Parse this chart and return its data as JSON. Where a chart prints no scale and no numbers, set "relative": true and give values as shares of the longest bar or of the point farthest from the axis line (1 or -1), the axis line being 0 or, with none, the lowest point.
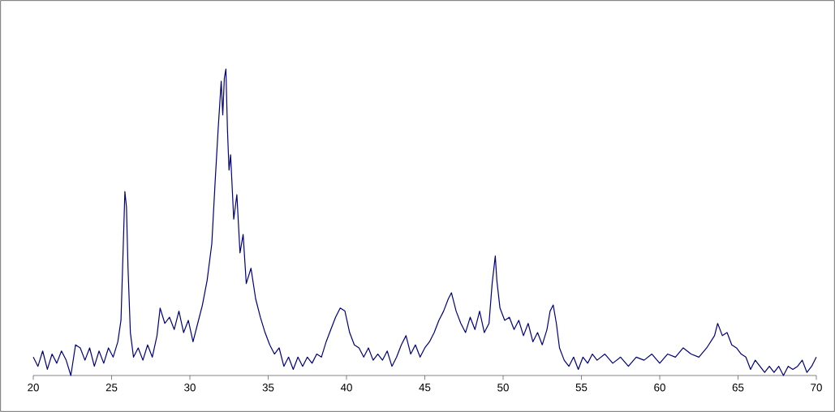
{
  "chart_data": {
    "type": "line",
    "relative": true,
    "xlim": [
      20,
      70
    ],
    "xticks": [
      20,
      25,
      30,
      35,
      40,
      45,
      50,
      55,
      60,
      65,
      70
    ],
    "series": [
      {
        "color": "#000080",
        "x": [
          20.0,
          20.3,
          20.6,
          20.9,
          21.2,
          21.5,
          21.8,
          22.1,
          22.4,
          22.7,
          23.0,
          23.3,
          23.6,
          23.9,
          24.2,
          24.5,
          24.8,
          25.1,
          25.4,
          25.6,
          25.75,
          25.85,
          25.95,
          26.05,
          26.2,
          26.4,
          26.7,
          27.0,
          27.3,
          27.6,
          27.9,
          28.1,
          28.4,
          28.7,
          29.0,
          29.3,
          29.6,
          29.9,
          30.2,
          30.5,
          30.8,
          31.1,
          31.4,
          31.6,
          31.8,
          32.0,
          32.1,
          32.2,
          32.3,
          32.4,
          32.5,
          32.6,
          32.8,
          33.0,
          33.2,
          33.4,
          33.6,
          33.9,
          34.2,
          34.5,
          34.8,
          35.1,
          35.4,
          35.7,
          36.0,
          36.3,
          36.6,
          36.9,
          37.2,
          37.5,
          37.8,
          38.1,
          38.4,
          38.7,
          39.0,
          39.3,
          39.6,
          39.9,
          40.2,
          40.5,
          40.8,
          41.1,
          41.4,
          41.7,
          42.0,
          42.3,
          42.6,
          42.9,
          43.2,
          43.5,
          43.8,
          44.1,
          44.4,
          44.7,
          45.0,
          45.3,
          45.6,
          45.9,
          46.2,
          46.5,
          46.7,
          47.0,
          47.3,
          47.6,
          47.9,
          48.2,
          48.5,
          48.8,
          49.1,
          49.3,
          49.5,
          49.6,
          49.8,
          50.1,
          50.4,
          50.7,
          51.0,
          51.3,
          51.6,
          51.9,
          52.2,
          52.5,
          52.8,
          53.0,
          53.2,
          53.4,
          53.6,
          53.9,
          54.2,
          54.5,
          54.8,
          55.1,
          55.4,
          55.7,
          56.0,
          56.5,
          57.0,
          57.5,
          58.0,
          58.5,
          59.0,
          59.5,
          60.0,
          60.5,
          61.0,
          61.5,
          62.0,
          62.5,
          63.0,
          63.5,
          63.7,
          64.0,
          64.3,
          64.6,
          64.9,
          65.2,
          65.5,
          65.8,
          66.1,
          66.4,
          66.7,
          67.0,
          67.3,
          67.6,
          67.9,
          68.2,
          68.5,
          68.8,
          69.1,
          69.4,
          69.7,
          70.0
        ],
        "values": [
          0.06,
          0.03,
          0.08,
          0.02,
          0.07,
          0.04,
          0.08,
          0.05,
          0.0,
          0.1,
          0.09,
          0.05,
          0.09,
          0.03,
          0.08,
          0.04,
          0.09,
          0.06,
          0.11,
          0.18,
          0.43,
          0.6,
          0.55,
          0.35,
          0.14,
          0.06,
          0.09,
          0.05,
          0.1,
          0.06,
          0.13,
          0.22,
          0.17,
          0.19,
          0.15,
          0.21,
          0.14,
          0.18,
          0.11,
          0.17,
          0.23,
          0.31,
          0.43,
          0.62,
          0.8,
          0.96,
          0.85,
          0.97,
          1.0,
          0.8,
          0.67,
          0.72,
          0.51,
          0.59,
          0.4,
          0.46,
          0.3,
          0.35,
          0.25,
          0.19,
          0.14,
          0.1,
          0.07,
          0.09,
          0.03,
          0.06,
          0.02,
          0.06,
          0.03,
          0.06,
          0.04,
          0.07,
          0.06,
          0.11,
          0.15,
          0.19,
          0.22,
          0.21,
          0.14,
          0.1,
          0.09,
          0.06,
          0.09,
          0.05,
          0.07,
          0.05,
          0.08,
          0.03,
          0.06,
          0.1,
          0.13,
          0.07,
          0.1,
          0.06,
          0.09,
          0.11,
          0.14,
          0.18,
          0.21,
          0.25,
          0.27,
          0.21,
          0.17,
          0.14,
          0.19,
          0.15,
          0.21,
          0.14,
          0.17,
          0.3,
          0.39,
          0.31,
          0.22,
          0.18,
          0.19,
          0.15,
          0.18,
          0.13,
          0.17,
          0.11,
          0.14,
          0.1,
          0.15,
          0.21,
          0.23,
          0.17,
          0.09,
          0.05,
          0.03,
          0.06,
          0.02,
          0.06,
          0.04,
          0.07,
          0.05,
          0.07,
          0.04,
          0.06,
          0.03,
          0.06,
          0.05,
          0.07,
          0.04,
          0.07,
          0.06,
          0.09,
          0.07,
          0.06,
          0.09,
          0.13,
          0.17,
          0.13,
          0.14,
          0.1,
          0.09,
          0.07,
          0.06,
          0.02,
          0.05,
          0.03,
          0.01,
          0.03,
          0.01,
          0.03,
          0.0,
          0.03,
          0.02,
          0.03,
          0.05,
          0.01,
          0.03,
          0.06
        ]
      }
    ]
  }
}
